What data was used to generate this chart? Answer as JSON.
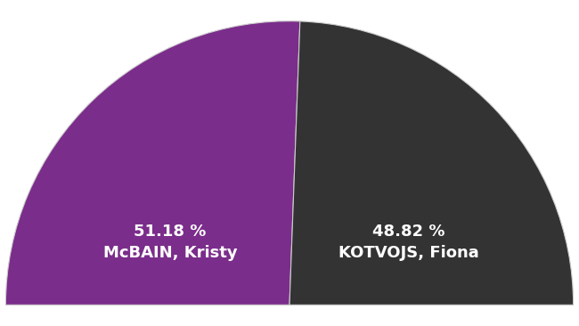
{
  "slices": [
    51.18,
    48.82
  ],
  "colors": [
    "#7B2D8B",
    "#333333"
  ],
  "labels": [
    "51.18 %\nMcBAIN, Kristy",
    "48.82 %\nKOTVOJS, Fiona"
  ],
  "background_color": "#ffffff",
  "text_color": "#ffffff",
  "font_size": 13,
  "figsize": [
    6.5,
    3.66
  ]
}
